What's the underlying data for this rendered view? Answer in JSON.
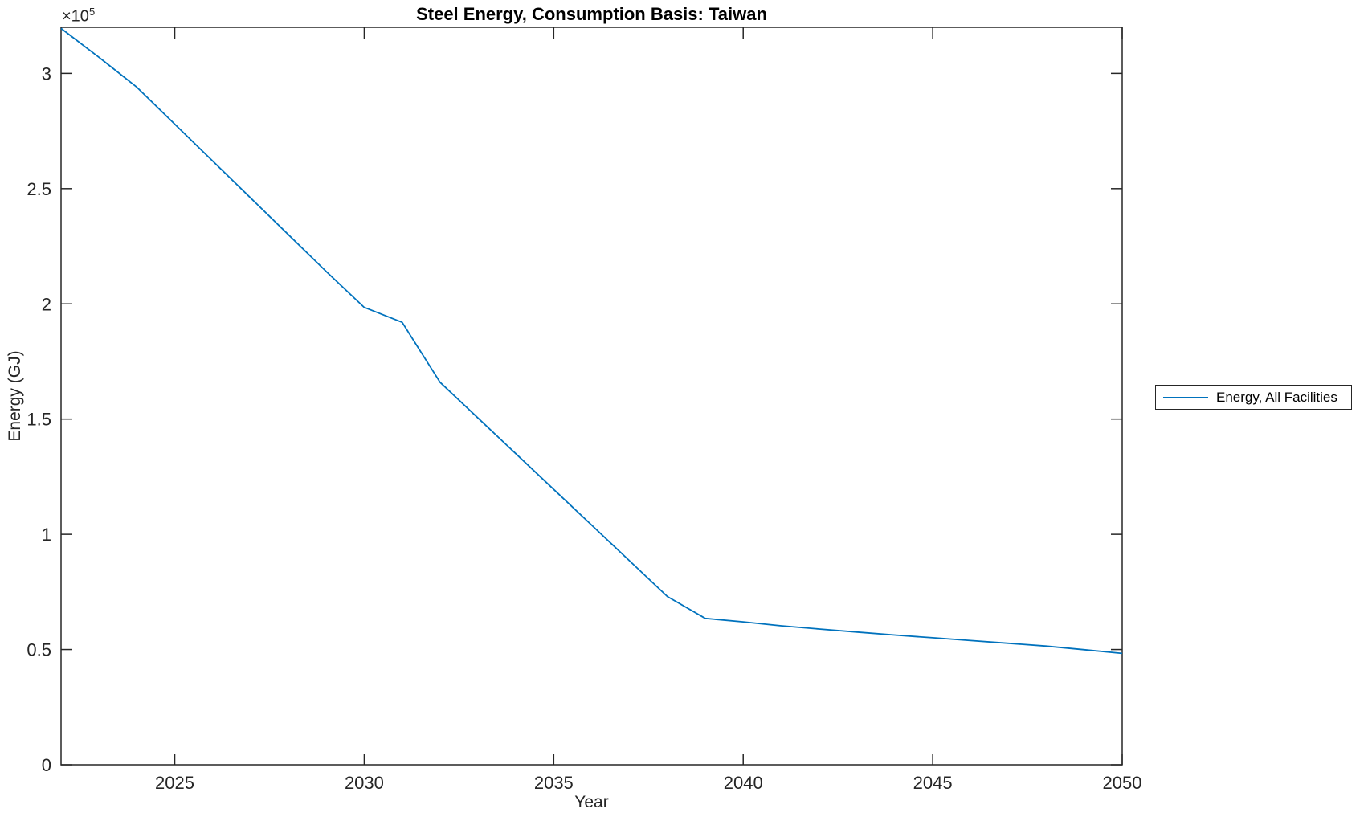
{
  "chart_data": {
    "type": "line",
    "title": "Steel Energy, Consumption Basis: Taiwan",
    "xlabel": "Year",
    "ylabel": "Energy (GJ)",
    "y_axis_multiplier": {
      "base": "×10",
      "exp": "5"
    },
    "xlim": [
      2022,
      2050
    ],
    "ylim": [
      0,
      320000
    ],
    "grid": false,
    "box": true,
    "axis_color": "#262626",
    "tick_label_color": "#262626",
    "background": "#ffffff",
    "x_ticks": [
      {
        "value": 2025,
        "label": "2025"
      },
      {
        "value": 2030,
        "label": "2030"
      },
      {
        "value": 2035,
        "label": "2035"
      },
      {
        "value": 2040,
        "label": "2040"
      },
      {
        "value": 2045,
        "label": "2045"
      },
      {
        "value": 2050,
        "label": "2050"
      }
    ],
    "y_ticks": [
      {
        "value": 0,
        "label": "0"
      },
      {
        "value": 50000,
        "label": "0.5"
      },
      {
        "value": 100000,
        "label": "1"
      },
      {
        "value": 150000,
        "label": "1.5"
      },
      {
        "value": 200000,
        "label": "2"
      },
      {
        "value": 250000,
        "label": "2.5"
      },
      {
        "value": 300000,
        "label": "3"
      }
    ],
    "legend": {
      "position": "right-outside",
      "entries": [
        {
          "label": "Energy, All Facilities",
          "color": "#0072BD"
        }
      ]
    },
    "series": [
      {
        "name": "Energy, All Facilities",
        "color": "#0072BD",
        "x": [
          2022,
          2023,
          2024,
          2025,
          2026,
          2027,
          2028,
          2029,
          2030,
          2031,
          2032,
          2033,
          2034,
          2035,
          2036,
          2037,
          2038,
          2039,
          2040,
          2041,
          2042,
          2043,
          2044,
          2045,
          2046,
          2047,
          2048,
          2049,
          2050
        ],
        "values": [
          319500,
          307000,
          294000,
          278000,
          262000,
          246000,
          230000,
          214000,
          198500,
          192000,
          166000,
          150500,
          135000,
          119500,
          104000,
          88500,
          73000,
          63500,
          62000,
          60300,
          58900,
          57600,
          56300,
          55100,
          53900,
          52700,
          51500,
          49900,
          48300
        ]
      }
    ]
  }
}
